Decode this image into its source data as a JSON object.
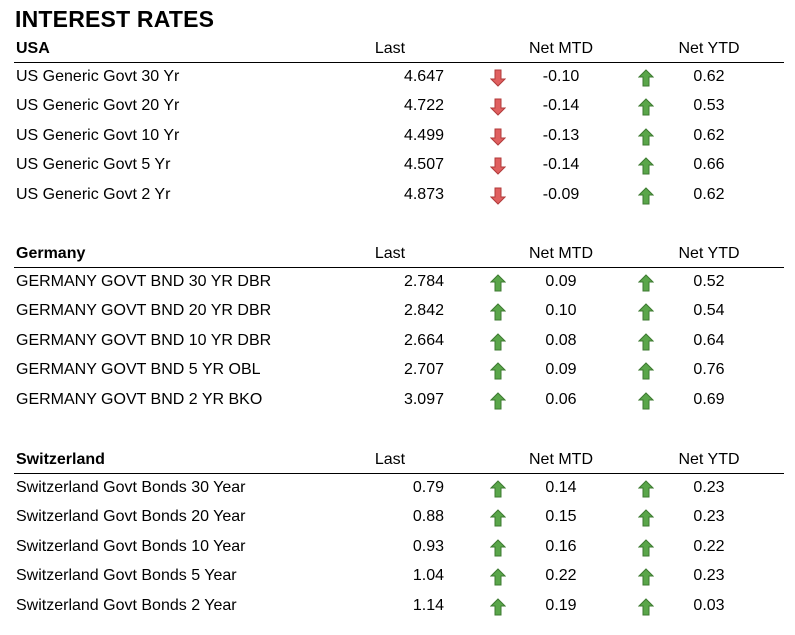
{
  "title": "INTEREST RATES",
  "colors": {
    "up": "#5aa64a",
    "down": "#e06060"
  },
  "sections": [
    {
      "name": "USA",
      "headers": {
        "last": "Last",
        "mtd": "Net MTD",
        "ytd": "Net YTD"
      },
      "rows": [
        {
          "label": "US Generic Govt 30 Yr",
          "last": "4.647",
          "mtd_dir": "down",
          "mtd": "-0.10",
          "ytd_dir": "up",
          "ytd": "0.62"
        },
        {
          "label": "US Generic Govt 20 Yr",
          "last": "4.722",
          "mtd_dir": "down",
          "mtd": "-0.14",
          "ytd_dir": "up",
          "ytd": "0.53"
        },
        {
          "label": "US Generic Govt 10 Yr",
          "last": "4.499",
          "mtd_dir": "down",
          "mtd": "-0.13",
          "ytd_dir": "up",
          "ytd": "0.62"
        },
        {
          "label": "US Generic Govt 5 Yr",
          "last": "4.507",
          "mtd_dir": "down",
          "mtd": "-0.14",
          "ytd_dir": "up",
          "ytd": "0.66"
        },
        {
          "label": "US Generic Govt 2 Yr",
          "last": "4.873",
          "mtd_dir": "down",
          "mtd": "-0.09",
          "ytd_dir": "up",
          "ytd": "0.62"
        }
      ]
    },
    {
      "name": "Germany",
      "headers": {
        "last": "Last",
        "mtd": "Net MTD",
        "ytd": "Net YTD"
      },
      "rows": [
        {
          "label": "GERMANY GOVT BND 30 YR DBR",
          "last": "2.784",
          "mtd_dir": "up",
          "mtd": "0.09",
          "ytd_dir": "up",
          "ytd": "0.52"
        },
        {
          "label": "GERMANY GOVT BND 20 YR DBR",
          "last": "2.842",
          "mtd_dir": "up",
          "mtd": "0.10",
          "ytd_dir": "up",
          "ytd": "0.54"
        },
        {
          "label": "GERMANY GOVT BND 10 YR DBR",
          "last": "2.664",
          "mtd_dir": "up",
          "mtd": "0.08",
          "ytd_dir": "up",
          "ytd": "0.64"
        },
        {
          "label": "GERMANY GOVT BND 5 YR OBL",
          "last": "2.707",
          "mtd_dir": "up",
          "mtd": "0.09",
          "ytd_dir": "up",
          "ytd": "0.76"
        },
        {
          "label": "GERMANY GOVT BND 2 YR BKO",
          "last": "3.097",
          "mtd_dir": "up",
          "mtd": "0.06",
          "ytd_dir": "up",
          "ytd": "0.69"
        }
      ]
    },
    {
      "name": "Switzerland",
      "headers": {
        "last": "Last",
        "mtd": "Net MTD",
        "ytd": "Net YTD"
      },
      "rows": [
        {
          "label": "Switzerland Govt Bonds 30 Year",
          "last": "0.79",
          "mtd_dir": "up",
          "mtd": "0.14",
          "ytd_dir": "up",
          "ytd": "0.23"
        },
        {
          "label": "Switzerland Govt Bonds 20 Year",
          "last": "0.88",
          "mtd_dir": "up",
          "mtd": "0.15",
          "ytd_dir": "up",
          "ytd": "0.23"
        },
        {
          "label": "Switzerland Govt Bonds 10 Year",
          "last": "0.93",
          "mtd_dir": "up",
          "mtd": "0.16",
          "ytd_dir": "up",
          "ytd": "0.22"
        },
        {
          "label": "Switzerland Govt Bonds 5 Year",
          "last": "1.04",
          "mtd_dir": "up",
          "mtd": "0.22",
          "ytd_dir": "up",
          "ytd": "0.23"
        },
        {
          "label": "Switzerland Govt Bonds 2 Year",
          "last": "1.14",
          "mtd_dir": "up",
          "mtd": "0.19",
          "ytd_dir": "up",
          "ytd": "0.03"
        }
      ]
    }
  ]
}
